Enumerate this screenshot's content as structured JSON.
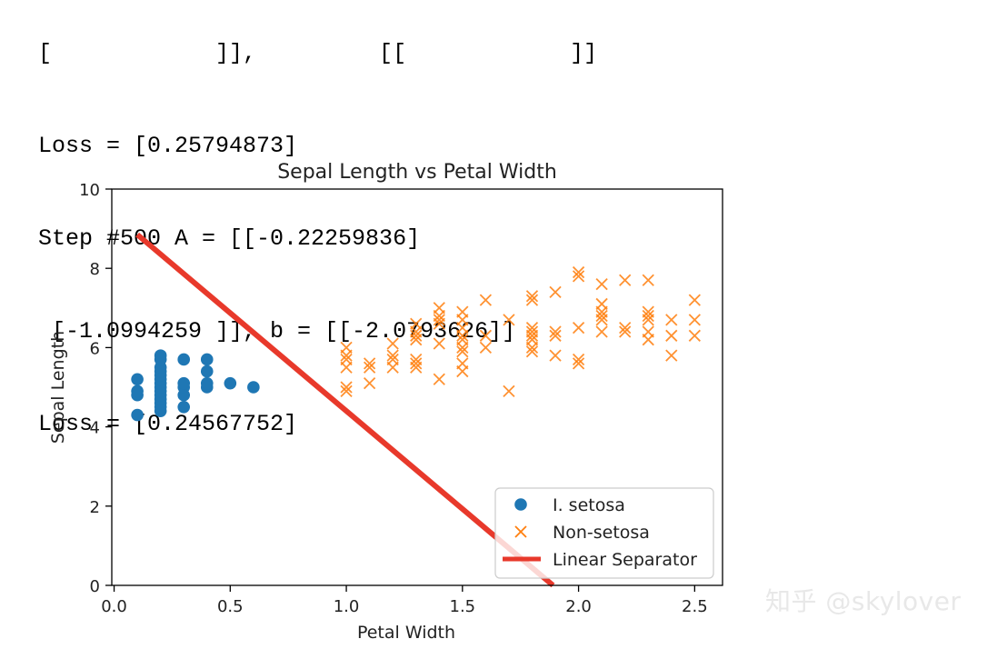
{
  "console": {
    "partial_line": "[            ]],         [[            ]]",
    "lines": [
      "Loss = [0.25794873]",
      "Step #500 A = [[-0.22259836]",
      " [-1.0994259 ]], b = [[-2.0793626]]",
      "Loss = [0.24567752]"
    ]
  },
  "watermark": "知乎 @skylover",
  "colors": {
    "setosa": "#1f77b4",
    "non_setosa": "#ff7f0e",
    "separator": "#e8392b",
    "axis": "#000000"
  },
  "chart_data": {
    "type": "scatter",
    "title": "Sepal Length vs Petal Width",
    "xlabel": "Petal Width",
    "ylabel": "Sepal Length",
    "xlim": [
      -0.01,
      2.62
    ],
    "ylim": [
      0,
      10
    ],
    "xticks": [
      0.0,
      0.5,
      1.0,
      1.5,
      2.0,
      2.5
    ],
    "xtick_labels": [
      "0.0",
      "0.5",
      "1.0",
      "1.5",
      "2.0",
      "2.5"
    ],
    "yticks": [
      0,
      2,
      4,
      6,
      8,
      10
    ],
    "ytick_labels": [
      "0",
      "2",
      "4",
      "6",
      "8",
      "10"
    ],
    "grid": false,
    "legend_position": "lower-right",
    "series": [
      {
        "name": "I. setosa",
        "marker": "circle",
        "points": [
          [
            0.1,
            4.3
          ],
          [
            0.1,
            4.8
          ],
          [
            0.1,
            4.9
          ],
          [
            0.1,
            5.2
          ],
          [
            0.2,
            4.4
          ],
          [
            0.2,
            4.5
          ],
          [
            0.2,
            4.6
          ],
          [
            0.2,
            4.7
          ],
          [
            0.2,
            4.8
          ],
          [
            0.2,
            4.9
          ],
          [
            0.2,
            5.0
          ],
          [
            0.2,
            5.1
          ],
          [
            0.2,
            5.2
          ],
          [
            0.2,
            5.3
          ],
          [
            0.2,
            5.4
          ],
          [
            0.2,
            5.5
          ],
          [
            0.2,
            5.7
          ],
          [
            0.2,
            5.8
          ],
          [
            0.3,
            4.5
          ],
          [
            0.3,
            4.8
          ],
          [
            0.3,
            5.0
          ],
          [
            0.3,
            5.1
          ],
          [
            0.3,
            5.7
          ],
          [
            0.4,
            5.0
          ],
          [
            0.4,
            5.1
          ],
          [
            0.4,
            5.4
          ],
          [
            0.4,
            5.7
          ],
          [
            0.5,
            5.1
          ],
          [
            0.6,
            5.0
          ]
        ]
      },
      {
        "name": "Non-setosa",
        "marker": "x",
        "points": [
          [
            1.0,
            4.9
          ],
          [
            1.0,
            5.0
          ],
          [
            1.0,
            5.5
          ],
          [
            1.0,
            5.7
          ],
          [
            1.0,
            5.8
          ],
          [
            1.0,
            6.0
          ],
          [
            1.1,
            5.1
          ],
          [
            1.1,
            5.5
          ],
          [
            1.1,
            5.6
          ],
          [
            1.2,
            5.5
          ],
          [
            1.2,
            5.7
          ],
          [
            1.2,
            5.8
          ],
          [
            1.2,
            6.1
          ],
          [
            1.3,
            5.5
          ],
          [
            1.3,
            5.6
          ],
          [
            1.3,
            5.7
          ],
          [
            1.3,
            6.2
          ],
          [
            1.3,
            6.3
          ],
          [
            1.3,
            6.4
          ],
          [
            1.3,
            6.6
          ],
          [
            1.4,
            5.2
          ],
          [
            1.4,
            6.1
          ],
          [
            1.4,
            6.6
          ],
          [
            1.4,
            6.7
          ],
          [
            1.4,
            6.8
          ],
          [
            1.4,
            7.0
          ],
          [
            1.5,
            5.4
          ],
          [
            1.5,
            5.6
          ],
          [
            1.5,
            5.9
          ],
          [
            1.5,
            6.0
          ],
          [
            1.5,
            6.2
          ],
          [
            1.5,
            6.3
          ],
          [
            1.5,
            6.5
          ],
          [
            1.5,
            6.7
          ],
          [
            1.5,
            6.9
          ],
          [
            1.6,
            6.0
          ],
          [
            1.6,
            6.3
          ],
          [
            1.6,
            7.2
          ],
          [
            1.7,
            4.9
          ],
          [
            1.7,
            6.7
          ],
          [
            1.8,
            5.9
          ],
          [
            1.8,
            6.0
          ],
          [
            1.8,
            6.2
          ],
          [
            1.8,
            6.3
          ],
          [
            1.8,
            6.4
          ],
          [
            1.8,
            6.5
          ],
          [
            1.8,
            7.2
          ],
          [
            1.8,
            7.3
          ],
          [
            1.9,
            5.8
          ],
          [
            1.9,
            6.3
          ],
          [
            1.9,
            6.4
          ],
          [
            1.9,
            7.4
          ],
          [
            2.0,
            5.6
          ],
          [
            2.0,
            5.7
          ],
          [
            2.0,
            6.5
          ],
          [
            2.0,
            7.8
          ],
          [
            2.0,
            7.9
          ],
          [
            2.1,
            6.4
          ],
          [
            2.1,
            6.7
          ],
          [
            2.1,
            6.8
          ],
          [
            2.1,
            6.9
          ],
          [
            2.1,
            7.1
          ],
          [
            2.1,
            7.6
          ],
          [
            2.2,
            6.4
          ],
          [
            2.2,
            6.5
          ],
          [
            2.2,
            7.7
          ],
          [
            2.3,
            6.2
          ],
          [
            2.3,
            6.4
          ],
          [
            2.3,
            6.7
          ],
          [
            2.3,
            6.8
          ],
          [
            2.3,
            6.9
          ],
          [
            2.3,
            7.7
          ],
          [
            2.4,
            5.8
          ],
          [
            2.4,
            6.3
          ],
          [
            2.4,
            6.7
          ],
          [
            2.5,
            6.3
          ],
          [
            2.5,
            6.7
          ],
          [
            2.5,
            7.2
          ]
        ]
      },
      {
        "name": "Linear Separator",
        "type": "line",
        "points": [
          [
            0.1,
            8.85
          ],
          [
            1.89,
            0.0
          ]
        ]
      }
    ]
  }
}
